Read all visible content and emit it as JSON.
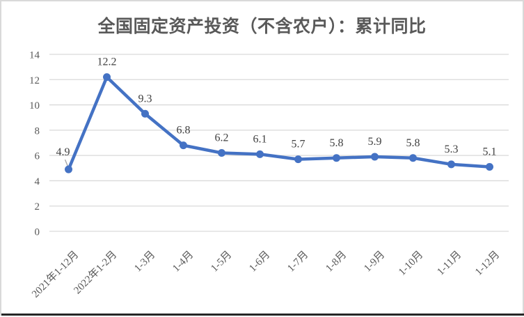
{
  "chart_data": {
    "type": "line",
    "title": "全国固定资产投资（不含农户）：累计同比",
    "categories": [
      "2021年1-12月",
      "2022年1-2月",
      "1-3月",
      "1-4月",
      "1-5月",
      "1-6月",
      "1-7月",
      "1-8月",
      "1-9月",
      "1-10月",
      "1-11月",
      "1-12月"
    ],
    "values": [
      4.9,
      12.2,
      9.3,
      6.8,
      6.2,
      6.1,
      5.7,
      5.8,
      5.9,
      5.8,
      5.3,
      5.1
    ],
    "data_labels": [
      "4.9",
      "12.2",
      "9.3",
      "6.8",
      "6.2",
      "6.1",
      "5.7",
      "5.8",
      "5.9",
      "5.8",
      "5.3",
      "5.1"
    ],
    "y_ticks": [
      0,
      2,
      4,
      6,
      8,
      10,
      12,
      14
    ],
    "ylim": [
      0,
      14
    ],
    "xlabel": "",
    "ylabel": "",
    "grid": true,
    "legend": "none",
    "x_label_rotation_deg": 45,
    "marker": "circle",
    "annotations": {
      "first_point_label_offset": true,
      "first_point_leader_line": true
    },
    "colors": {
      "line": "#4472C4",
      "marker": "#4472C4",
      "gridline": "#D9D9D9",
      "axis_labels": "#595959",
      "data_labels": "#404040",
      "title": "#595959",
      "leader_line": "#A6A6A6",
      "frame_border": "#D9D9D9",
      "bottom_edge": "#262626",
      "background": "#FFFFFF"
    }
  }
}
